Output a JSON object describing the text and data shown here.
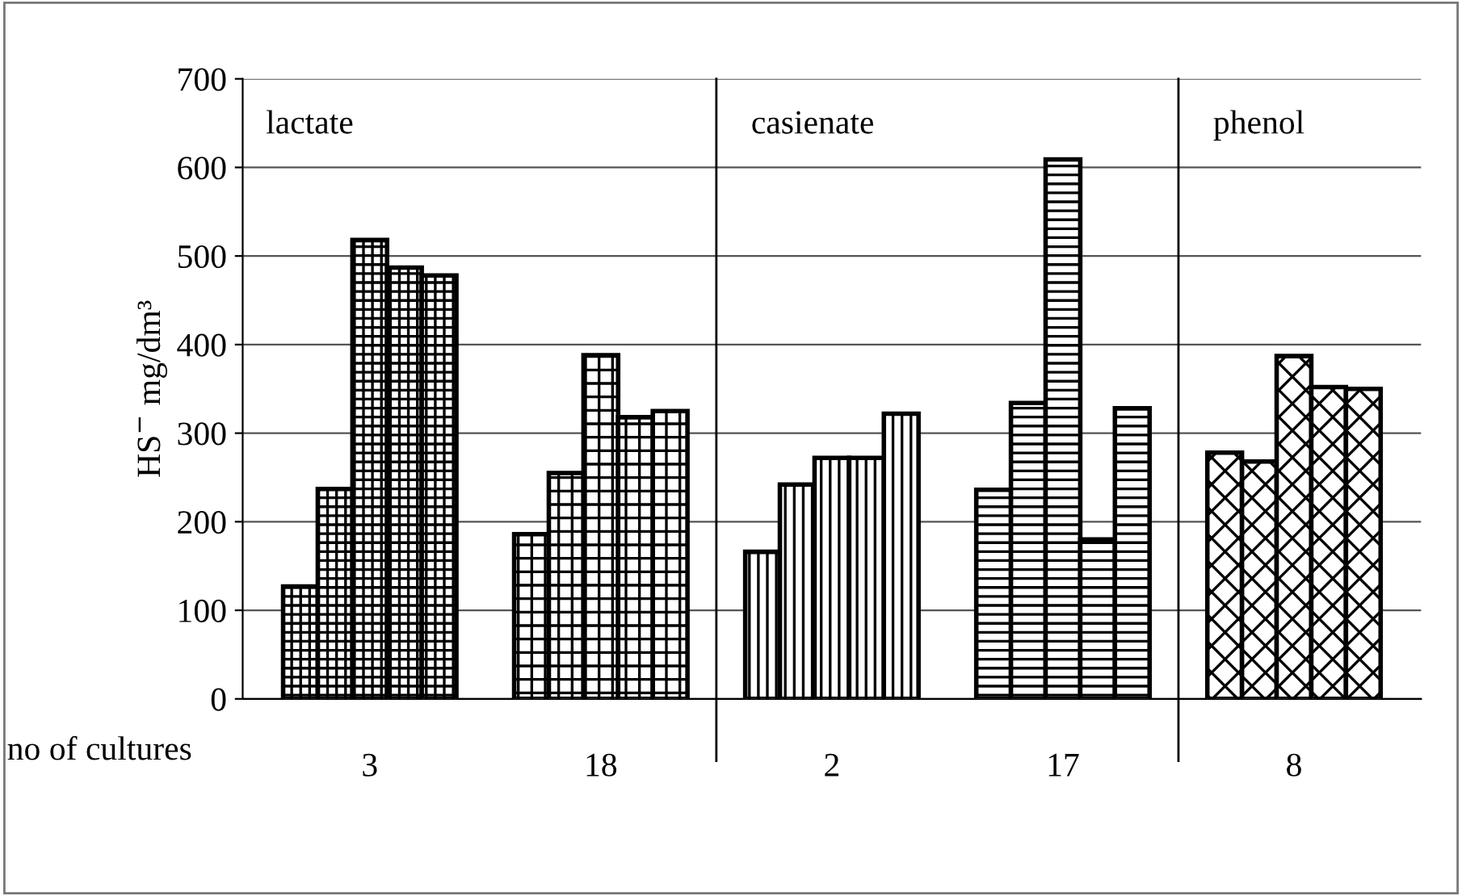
{
  "chart_data": {
    "type": "bar",
    "ylabel": "HS$^{−}$ mg/dm³",
    "xlabel": "no of cultures",
    "categories": [
      "3",
      "18",
      "2",
      "17",
      "8"
    ],
    "series": [
      {
        "color": "#000000",
        "values": [
          127,
          186,
          166,
          236,
          278
        ]
      },
      {
        "color": "#000000",
        "values": [
          237,
          255,
          242,
          334,
          268
        ]
      },
      {
        "color": "#000000",
        "values": [
          518,
          388,
          272,
          609,
          387
        ]
      },
      {
        "color": "#000000",
        "values": [
          487,
          318,
          272,
          180,
          352
        ]
      },
      {
        "color": "#000000",
        "values": [
          478,
          325,
          322,
          328,
          350
        ]
      }
    ],
    "ylim": [
      0,
      700
    ],
    "yticks": [
      0,
      100,
      200,
      300,
      400,
      500,
      600,
      700
    ],
    "grid": "y",
    "annotations": [
      "lactate",
      "casienate",
      "phenol"
    ]
  }
}
